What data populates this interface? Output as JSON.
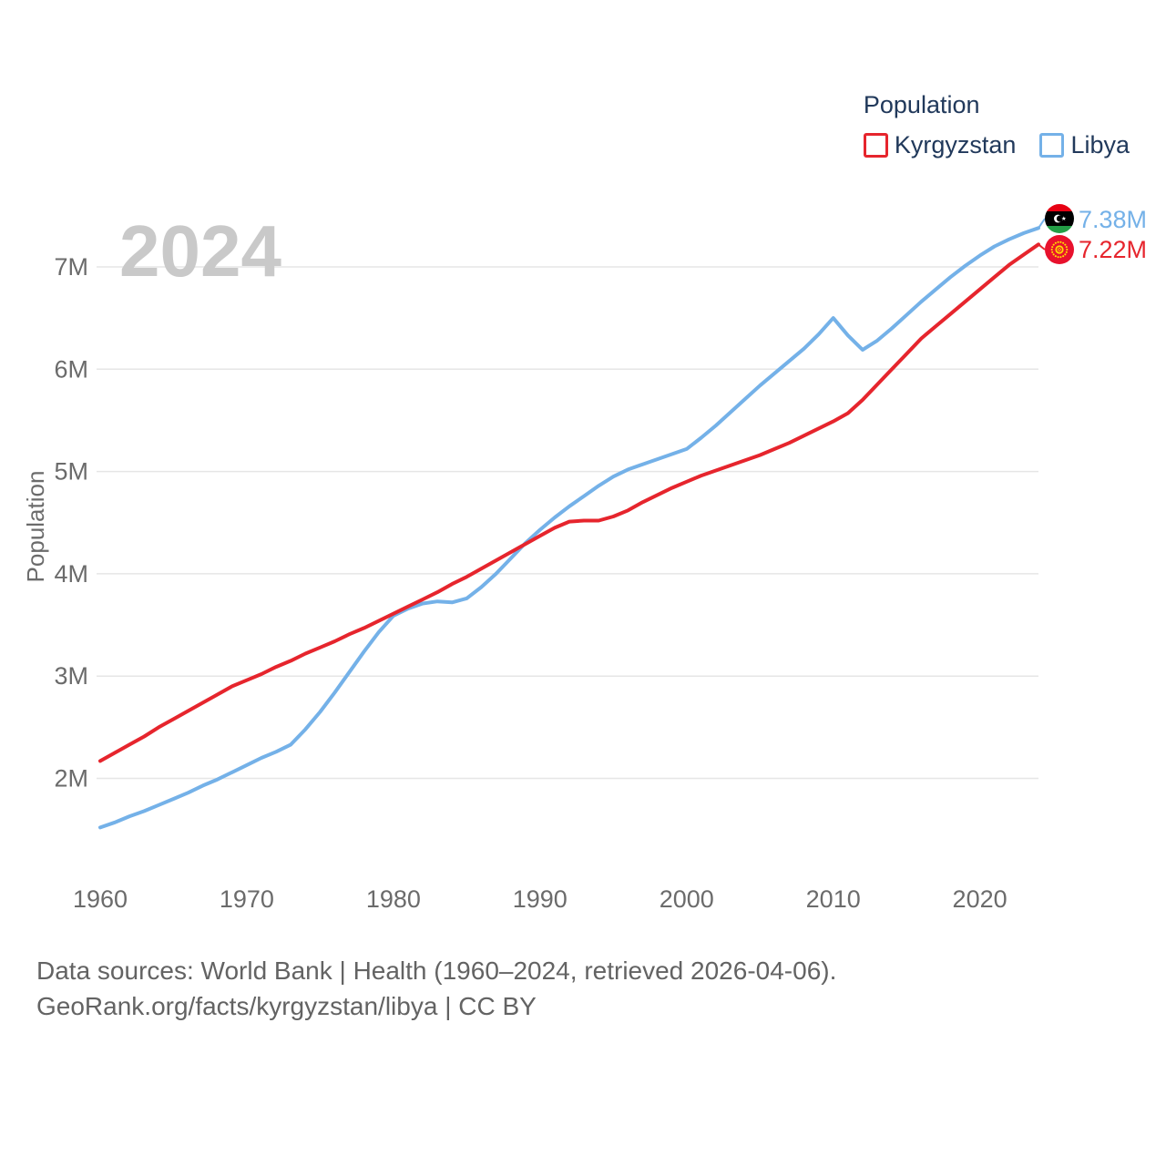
{
  "legend": {
    "title": "Population",
    "items": [
      {
        "label": "Kyrgyzstan"
      },
      {
        "label": "Libya"
      }
    ]
  },
  "y_axis": {
    "title": "Population"
  },
  "watermark": "2024",
  "footer": {
    "line1": "Data sources: World Bank | Health (1960–2024, retrieved 2026-04-06).",
    "line2": "GeoRank.org/facts/kyrgyzstan/libya | CC BY"
  },
  "chart_data": {
    "type": "line",
    "title": "Population",
    "xlabel": "",
    "ylabel": "Population",
    "legend_position": "top-right",
    "grid": "horizontal",
    "xlim": [
      1960,
      2024
    ],
    "ylim": [
      1.3,
      7.6
    ],
    "x_ticks": [
      1960,
      1970,
      1980,
      1990,
      2000,
      2010,
      2020
    ],
    "y_ticks": [
      "2M",
      "3M",
      "4M",
      "5M",
      "6M",
      "7M"
    ],
    "y_tick_values": [
      2,
      3,
      4,
      5,
      6,
      7
    ],
    "x": [
      1960,
      1961,
      1962,
      1963,
      1964,
      1965,
      1966,
      1967,
      1968,
      1969,
      1970,
      1971,
      1972,
      1973,
      1974,
      1975,
      1976,
      1977,
      1978,
      1979,
      1980,
      1981,
      1982,
      1983,
      1984,
      1985,
      1986,
      1987,
      1988,
      1989,
      1990,
      1991,
      1992,
      1993,
      1994,
      1995,
      1996,
      1997,
      1998,
      1999,
      2000,
      2001,
      2002,
      2003,
      2004,
      2005,
      2006,
      2007,
      2008,
      2009,
      2010,
      2011,
      2012,
      2013,
      2014,
      2015,
      2016,
      2017,
      2018,
      2019,
      2020,
      2021,
      2022,
      2023,
      2024
    ],
    "series": [
      {
        "name": "Kyrgyzstan",
        "color": "#e6252d",
        "values": [
          2.17,
          2.25,
          2.33,
          2.41,
          2.5,
          2.58,
          2.66,
          2.74,
          2.82,
          2.9,
          2.96,
          3.02,
          3.09,
          3.15,
          3.22,
          3.28,
          3.34,
          3.41,
          3.47,
          3.54,
          3.61,
          3.68,
          3.75,
          3.82,
          3.9,
          3.97,
          4.05,
          4.13,
          4.21,
          4.29,
          4.37,
          4.45,
          4.51,
          4.52,
          4.52,
          4.56,
          4.62,
          4.7,
          4.77,
          4.84,
          4.9,
          4.96,
          5.01,
          5.06,
          5.11,
          5.16,
          5.22,
          5.28,
          5.35,
          5.42,
          5.49,
          5.57,
          5.7,
          5.85,
          6.0,
          6.15,
          6.3,
          6.42,
          6.54,
          6.66,
          6.78,
          6.9,
          7.02,
          7.12,
          7.22
        ]
      },
      {
        "name": "Libya",
        "color": "#74b1e8",
        "values": [
          1.52,
          1.57,
          1.63,
          1.68,
          1.74,
          1.8,
          1.86,
          1.93,
          1.99,
          2.06,
          2.13,
          2.2,
          2.26,
          2.33,
          2.48,
          2.65,
          2.84,
          3.04,
          3.24,
          3.43,
          3.59,
          3.66,
          3.71,
          3.73,
          3.72,
          3.76,
          3.87,
          4.0,
          4.15,
          4.3,
          4.43,
          4.55,
          4.66,
          4.76,
          4.86,
          4.95,
          5.02,
          5.07,
          5.12,
          5.17,
          5.22,
          5.33,
          5.45,
          5.58,
          5.71,
          5.84,
          5.96,
          6.08,
          6.2,
          6.34,
          6.5,
          6.33,
          6.19,
          6.28,
          6.4,
          6.53,
          6.66,
          6.78,
          6.9,
          7.01,
          7.11,
          7.2,
          7.27,
          7.33,
          7.38
        ]
      }
    ],
    "end_labels": [
      {
        "series": "Libya",
        "text": "7.38M"
      },
      {
        "series": "Kyrgyzstan",
        "text": "7.22M"
      }
    ]
  }
}
